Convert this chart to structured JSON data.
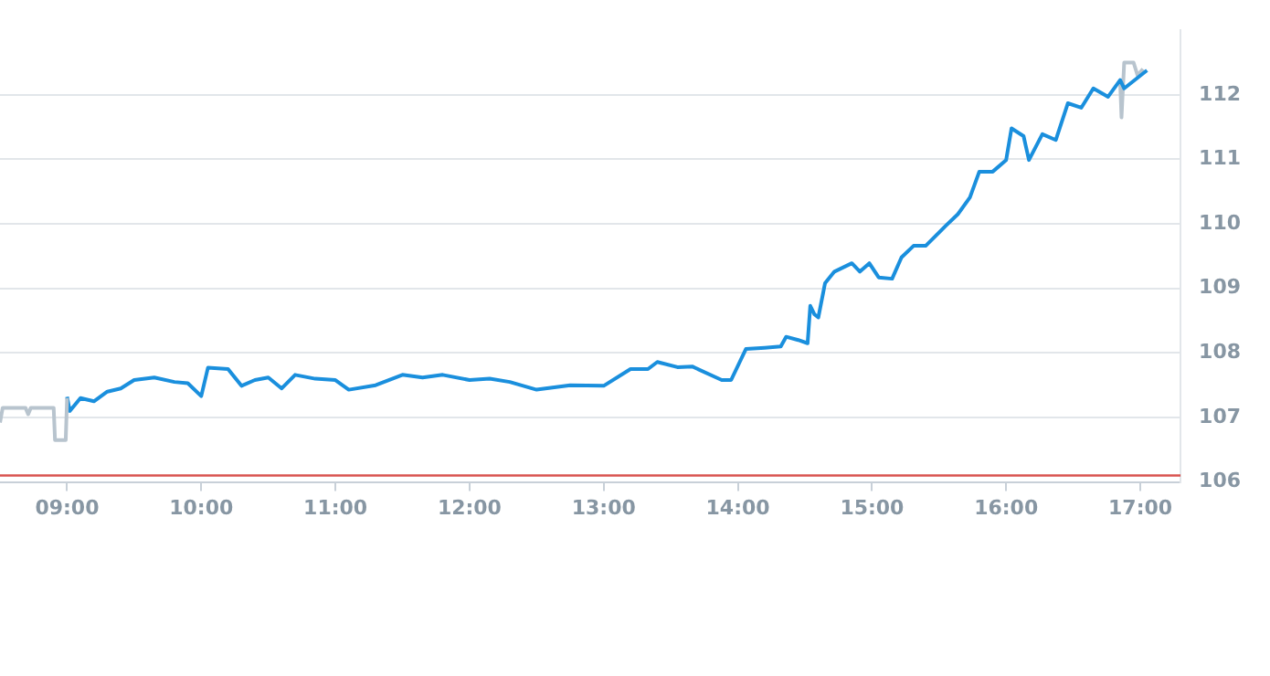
{
  "chart_data": {
    "type": "line",
    "xlim": [
      8.5,
      17.3
    ],
    "ylim": [
      106,
      113
    ],
    "xticks": [
      {
        "value": 9,
        "label": "09:00"
      },
      {
        "value": 10,
        "label": "10:00"
      },
      {
        "value": 11,
        "label": "11:00"
      },
      {
        "value": 12,
        "label": "12:00"
      },
      {
        "value": 13,
        "label": "13:00"
      },
      {
        "value": 14,
        "label": "14:00"
      },
      {
        "value": 15,
        "label": "15:00"
      },
      {
        "value": 16,
        "label": "16:00"
      },
      {
        "value": 17,
        "label": "17:00"
      }
    ],
    "yticks": [
      106,
      107,
      108,
      109,
      110,
      111,
      112
    ],
    "grid": "y",
    "legend": false,
    "marker": "none",
    "ref_lines": [
      {
        "axis": "y",
        "value": 106.1,
        "color": "#d9534f"
      }
    ],
    "series": [
      {
        "color": "#b8c4ce",
        "x": [
          8.5,
          8.52,
          8.69,
          8.71,
          8.73,
          8.9,
          8.91,
          8.99,
          9.0
        ],
        "values": [
          106.92,
          107.15,
          107.15,
          107.05,
          107.15,
          107.15,
          106.65,
          106.65,
          107.3
        ]
      },
      {
        "color": "#1a8fdd",
        "x": [
          9.0,
          9.02,
          9.1,
          9.2,
          9.3,
          9.4,
          9.5,
          9.65,
          9.8,
          9.9,
          10.0,
          10.05,
          10.2,
          10.3,
          10.4,
          10.5,
          10.6,
          10.7,
          10.85,
          11.0,
          11.1,
          11.3,
          11.5,
          11.65,
          11.8,
          12.0,
          12.15,
          12.3,
          12.5,
          12.75,
          13.0,
          13.2,
          13.33,
          13.4,
          13.55,
          13.66,
          13.88,
          13.95,
          14.06,
          14.2,
          14.32,
          14.36,
          14.45,
          14.52,
          14.54,
          14.57,
          14.6,
          14.65,
          14.72,
          14.85,
          14.91,
          14.98,
          15.05,
          15.15,
          15.22,
          15.31,
          15.4,
          15.55,
          15.64,
          15.73,
          15.8,
          15.9,
          16.0,
          16.04,
          16.13,
          16.17,
          16.27,
          16.37,
          16.46,
          16.56,
          16.65,
          16.76,
          16.85,
          16.88,
          17.05
        ],
        "values": [
          107.32,
          107.1,
          107.3,
          107.25,
          107.4,
          107.45,
          107.58,
          107.62,
          107.55,
          107.53,
          107.33,
          107.77,
          107.75,
          107.49,
          107.58,
          107.62,
          107.45,
          107.66,
          107.6,
          107.58,
          107.43,
          107.5,
          107.66,
          107.62,
          107.66,
          107.58,
          107.6,
          107.55,
          107.43,
          107.5,
          107.49,
          107.75,
          107.75,
          107.86,
          107.78,
          107.79,
          107.58,
          107.58,
          108.06,
          108.08,
          108.1,
          108.25,
          108.2,
          108.15,
          108.73,
          108.6,
          108.55,
          109.08,
          109.26,
          109.39,
          109.26,
          109.39,
          109.17,
          109.15,
          109.48,
          109.66,
          109.66,
          109.97,
          110.15,
          110.41,
          110.81,
          110.81,
          110.99,
          111.48,
          111.36,
          110.99,
          111.39,
          111.3,
          111.87,
          111.8,
          112.1,
          111.97,
          112.23,
          112.1,
          112.38
        ]
      },
      {
        "color": "#b8c4ce",
        "x": [
          16.85,
          16.86,
          16.88,
          16.95,
          16.98,
          17.02
        ],
        "values": [
          112.2,
          111.65,
          112.5,
          112.5,
          112.3,
          112.4
        ]
      }
    ]
  }
}
